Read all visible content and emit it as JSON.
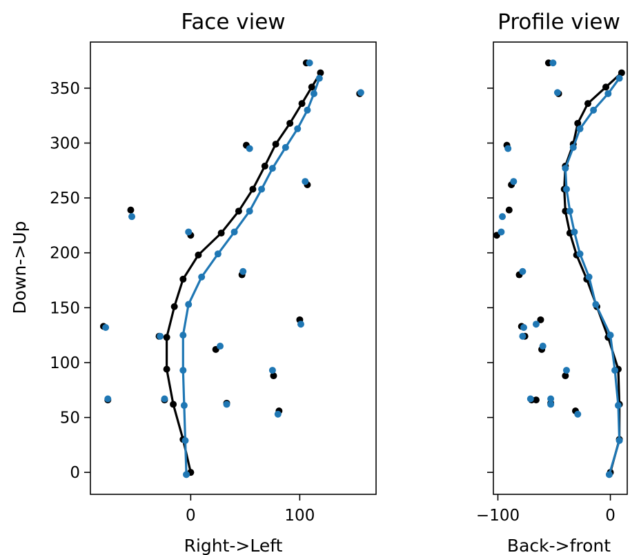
{
  "chart_data": [
    {
      "type": "scatter",
      "title": "Face view",
      "xlabel": "Right->Left",
      "ylabel": "Down->Up",
      "xlim": [
        -92,
        170
      ],
      "ylim": [
        -20,
        392
      ],
      "xticks": [
        0,
        100
      ],
      "xtick_labels": [
        "0",
        "100"
      ],
      "yticks": [
        0,
        50,
        100,
        150,
        200,
        250,
        300,
        350
      ],
      "ytick_labels": [
        "0",
        "50",
        "100",
        "150",
        "200",
        "250",
        "300",
        "350"
      ],
      "series": [
        {
          "color": "#000000",
          "lines": [
            {
              "x": [
                0,
                -7,
                -16,
                -22,
                -22,
                -15,
                -7,
                7,
                28,
                44,
                57,
                68,
                78,
                91,
                102,
                111,
                119
              ],
              "y": [
                0,
                30,
                62,
                94,
                123,
                151,
                176,
                198,
                218,
                238,
                258,
                279,
                299,
                318,
                336,
                351,
                364
              ]
            }
          ],
          "scatter": {
            "x": [
              -80,
              -76,
              -24,
              23,
              33,
              76,
              81,
              100,
              -29,
              47,
              0,
              -55,
              107,
              51,
              155,
              106
            ],
            "y": [
              133,
              66,
              66,
              112,
              63,
              88,
              56,
              139,
              124,
              180,
              216,
              239,
              262,
              298,
              345,
              373
            ]
          }
        },
        {
          "color": "#1f77b4",
          "lines": [
            {
              "x": [
                -4,
                -5,
                -6,
                -7,
                -7,
                -2,
                10,
                25,
                40,
                54,
                65,
                75,
                87,
                98,
                107,
                113,
                118
              ],
              "y": [
                -2,
                29,
                61,
                93,
                125,
                153,
                178,
                199,
                219,
                238,
                258,
                277,
                296,
                313,
                330,
                345,
                359
              ]
            }
          ],
          "scatter": {
            "x": [
              -78,
              -76,
              -24,
              27,
              33,
              75,
              80,
              101,
              -28,
              48,
              -2,
              -54,
              105,
              54,
              156,
              109
            ],
            "y": [
              132,
              67,
              67,
              115,
              62,
              93,
              53,
              135,
              124,
              183,
              219,
              233,
              265,
              295,
              346,
              373
            ]
          }
        }
      ]
    },
    {
      "type": "scatter",
      "title": "Profile view",
      "xlabel": "Back->front",
      "ylabel": "",
      "xlim": [
        -104,
        15
      ],
      "ylim": [
        -20,
        392
      ],
      "xticks": [
        -100,
        0
      ],
      "xtick_labels": [
        "−100",
        "0"
      ],
      "yticks": [
        0,
        50,
        100,
        150,
        200,
        250,
        300,
        350
      ],
      "series": [
        {
          "color": "#000000",
          "lines": [
            {
              "x": [
                0,
                8,
                8,
                7,
                -2,
                -12,
                -21,
                -30,
                -36,
                -40,
                -41,
                -40,
                -33,
                -29,
                -20,
                -4,
                10
              ],
              "y": [
                0,
                30,
                62,
                94,
                123,
                151,
                176,
                198,
                218,
                238,
                258,
                279,
                299,
                318,
                336,
                351,
                364
              ]
            }
          ],
          "scatter": {
            "x": [
              -79,
              -70,
              -66,
              -61,
              -53,
              -40,
              -31,
              -62,
              -76,
              -81,
              -101,
              -90,
              -88,
              -92,
              -46,
              -55
            ],
            "y": [
              133,
              66,
              66,
              112,
              63,
              88,
              56,
              139,
              124,
              180,
              216,
              239,
              262,
              298,
              345,
              373
            ]
          }
        },
        {
          "color": "#1f77b4",
          "lines": [
            {
              "x": [
                -1,
                8,
                7,
                4,
                0,
                -13,
                -19,
                -27,
                -32,
                -36,
                -39,
                -40,
                -33,
                -27,
                -15,
                -2,
                8
              ],
              "y": [
                -2,
                29,
                61,
                93,
                125,
                153,
                178,
                199,
                219,
                238,
                258,
                277,
                296,
                313,
                330,
                345,
                359
              ]
            }
          ],
          "scatter": {
            "x": [
              -77,
              -71,
              -53,
              -60,
              -53,
              -39,
              -29,
              -66,
              -78,
              -78,
              -97,
              -96,
              -86,
              -91,
              -47,
              -51
            ],
            "y": [
              132,
              67,
              67,
              115,
              62,
              93,
              53,
              135,
              124,
              183,
              219,
              233,
              265,
              295,
              346,
              373
            ]
          }
        }
      ]
    }
  ]
}
